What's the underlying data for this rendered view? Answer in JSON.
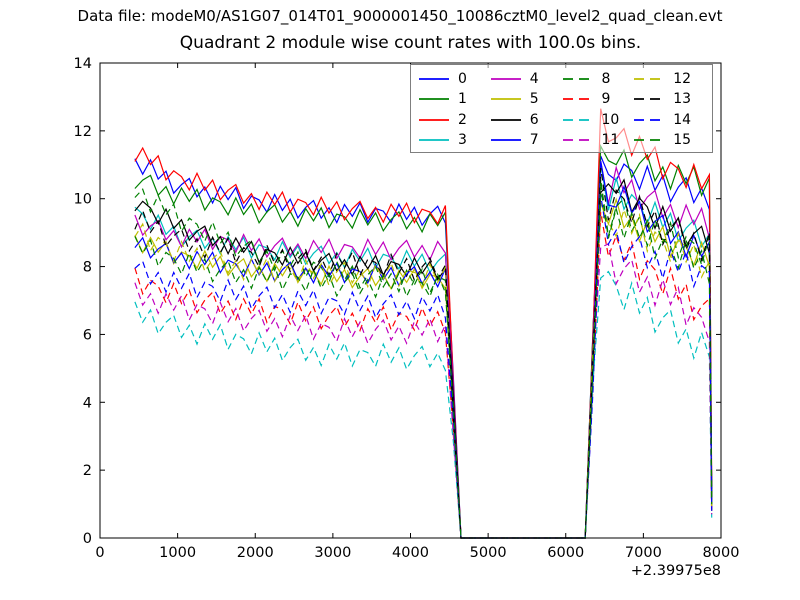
{
  "header": {
    "datafile": "Data file: modeM0/AS1G07_014T01_9000001450_10086cztM0_level2_quad_clean.evt"
  },
  "chart_data": {
    "type": "line",
    "title": "Quadrant 2 module wise count rates with 100.0s bins.",
    "xlabel": "",
    "ylabel": "",
    "xlim": [
      0,
      8000
    ],
    "ylim": [
      0,
      14
    ],
    "x_ticks": [
      0,
      1000,
      2000,
      3000,
      4000,
      5000,
      6000,
      7000,
      8000
    ],
    "y_ticks": [
      0,
      2,
      4,
      6,
      8,
      10,
      12,
      14
    ],
    "x_offset": "+2.39975e8",
    "grid": false,
    "legend": {
      "position": "upper right",
      "columns": 4,
      "frame_alpha": 0.55
    },
    "bin_seconds": 100,
    "data_gap": {
      "zero_from": 4650,
      "zero_to": 6250
    },
    "anchors_x": [
      450,
      1000,
      2000,
      3000,
      4450,
      4550,
      4650,
      6250,
      6350,
      6450,
      6550,
      6650,
      7200,
      7850
    ],
    "noise_template": [
      0.08,
      -0.25,
      0.3,
      -0.14,
      0.22,
      -0.3,
      0.04,
      0.27,
      -0.22,
      0.12,
      -0.3,
      0.24,
      -0.1,
      0.3,
      -0.26,
      0.15
    ],
    "region2_noise_scale": 1.4,
    "series": [
      {
        "name": "0",
        "color": "#0000ff",
        "dash": false,
        "noise_amp": 1.0,
        "noise_offset": 0,
        "anchors_y": [
          11.1,
          10.4,
          9.9,
          9.6,
          9.5,
          4.7,
          0,
          0,
          5.7,
          11.4,
          10.3,
          10.9,
          10.4,
          10.1
        ],
        "final_point": [
          7880,
          1.3
        ]
      },
      {
        "name": "1",
        "color": "#008000",
        "dash": false,
        "noise_amp": 1.0,
        "noise_offset": 5,
        "anchors_y": [
          10.6,
          10.1,
          9.6,
          9.4,
          9.3,
          4.6,
          0,
          0,
          5.9,
          11.9,
          10.7,
          11.2,
          10.8,
          10.4
        ],
        "final_point": [
          7880,
          1.1
        ]
      },
      {
        "name": "2",
        "color": "#ff0000",
        "dash": false,
        "noise_amp": 1.0,
        "noise_offset": 10,
        "anchors_y": [
          11.4,
          10.6,
          10.0,
          9.7,
          9.5,
          4.8,
          0,
          0,
          6.3,
          12.6,
          11.3,
          12.1,
          11.0,
          10.4
        ],
        "final_point": [
          7880,
          1.5
        ]
      },
      {
        "name": "3",
        "color": "#00bfbf",
        "dash": false,
        "noise_amp": 1.0,
        "noise_offset": 15,
        "anchors_y": [
          9.6,
          8.9,
          8.5,
          8.3,
          8.1,
          4.0,
          0,
          0,
          5.3,
          10.7,
          9.8,
          10.2,
          9.4,
          8.8
        ],
        "final_point": [
          7880,
          0.9
        ]
      },
      {
        "name": "4",
        "color": "#bf00bf",
        "dash": false,
        "noise_amp": 1.0,
        "noise_offset": 4,
        "anchors_y": [
          9.3,
          8.9,
          8.6,
          8.5,
          8.5,
          4.2,
          0,
          0,
          5.5,
          11.0,
          10.2,
          10.5,
          9.8,
          9.2
        ],
        "final_point": [
          7880,
          1.0
        ]
      },
      {
        "name": "5",
        "color": "#bfbf00",
        "dash": false,
        "noise_amp": 1.0,
        "noise_offset": 9,
        "anchors_y": [
          8.8,
          8.3,
          7.9,
          7.7,
          7.6,
          3.8,
          0,
          0,
          5.1,
          10.3,
          9.2,
          9.6,
          8.8,
          8.2
        ],
        "final_point": [
          7880,
          0.8
        ]
      },
      {
        "name": "6",
        "color": "#000000",
        "dash": false,
        "noise_amp": 1.0,
        "noise_offset": 14,
        "anchors_y": [
          9.9,
          9.2,
          8.4,
          8.1,
          7.9,
          4.0,
          0,
          0,
          5.4,
          10.6,
          10.1,
          10.3,
          9.4,
          8.7
        ],
        "final_point": [
          7880,
          1.2
        ]
      },
      {
        "name": "7",
        "color": "#0000ff",
        "dash": false,
        "noise_amp": 1.0,
        "noise_offset": 3,
        "anchors_y": [
          8.7,
          8.3,
          7.9,
          7.8,
          7.7,
          3.9,
          0,
          0,
          5.6,
          10.9,
          9.7,
          10.1,
          9.2,
          8.3
        ],
        "final_point": [
          7880,
          1.0
        ]
      },
      {
        "name": "8",
        "color": "#008000",
        "dash": true,
        "noise_amp": 1.2,
        "noise_offset": 8,
        "anchors_y": [
          10.3,
          9.4,
          8.4,
          7.8,
          7.5,
          3.7,
          0,
          0,
          5.2,
          10.2,
          9.4,
          9.7,
          8.9,
          8.4
        ],
        "final_point": [
          7880,
          0.9
        ]
      },
      {
        "name": "9",
        "color": "#ff0000",
        "dash": true,
        "noise_amp": 1.2,
        "noise_offset": 13,
        "anchors_y": [
          7.6,
          7.1,
          6.7,
          6.5,
          6.4,
          3.2,
          0,
          0,
          4.8,
          9.4,
          8.8,
          8.5,
          7.7,
          6.6
        ],
        "final_point": [
          7880,
          0.7
        ]
      },
      {
        "name": "10",
        "color": "#00bfbf",
        "dash": true,
        "noise_amp": 1.2,
        "noise_offset": 2,
        "anchors_y": [
          6.6,
          6.2,
          5.7,
          5.4,
          5.3,
          2.6,
          0,
          0,
          4.1,
          8.1,
          7.6,
          7.3,
          6.5,
          5.5
        ],
        "final_point": [
          7880,
          0.6
        ]
      },
      {
        "name": "11",
        "color": "#bf00bf",
        "dash": true,
        "noise_amp": 1.2,
        "noise_offset": 7,
        "anchors_y": [
          7.2,
          6.8,
          6.4,
          6.1,
          6.1,
          3.0,
          0,
          0,
          4.5,
          8.8,
          8.3,
          8.0,
          7.3,
          6.2
        ],
        "final_point": [
          7880,
          0.7
        ]
      },
      {
        "name": "12",
        "color": "#bfbf00",
        "dash": true,
        "noise_amp": 1.2,
        "noise_offset": 12,
        "anchors_y": [
          9.0,
          8.4,
          7.9,
          7.8,
          7.7,
          3.8,
          0,
          0,
          5.0,
          9.9,
          9.1,
          9.4,
          8.7,
          8.1
        ],
        "final_point": [
          7880,
          0.9
        ]
      },
      {
        "name": "13",
        "color": "#000000",
        "dash": true,
        "noise_amp": 1.2,
        "noise_offset": 1,
        "anchors_y": [
          9.4,
          8.8,
          8.3,
          8.1,
          7.9,
          4.0,
          0,
          0,
          5.3,
          10.4,
          9.8,
          10.0,
          9.2,
          8.6
        ],
        "final_point": [
          7880,
          1.1
        ]
      },
      {
        "name": "14",
        "color": "#0000ff",
        "dash": true,
        "noise_amp": 1.2,
        "noise_offset": 6,
        "anchors_y": [
          7.9,
          7.5,
          7.1,
          6.9,
          6.8,
          3.4,
          0,
          0,
          4.7,
          9.6,
          8.9,
          8.7,
          8.2,
          7.7
        ],
        "final_point": [
          7880,
          0.8
        ]
      },
      {
        "name": "15",
        "color": "#008000",
        "dash": true,
        "noise_amp": 1.2,
        "noise_offset": 11,
        "anchors_y": [
          8.6,
          8.1,
          7.7,
          7.5,
          7.4,
          3.7,
          0,
          0,
          4.9,
          9.9,
          9.2,
          9.5,
          8.6,
          8.0
        ],
        "final_point": [
          7880,
          1.0
        ]
      }
    ]
  }
}
